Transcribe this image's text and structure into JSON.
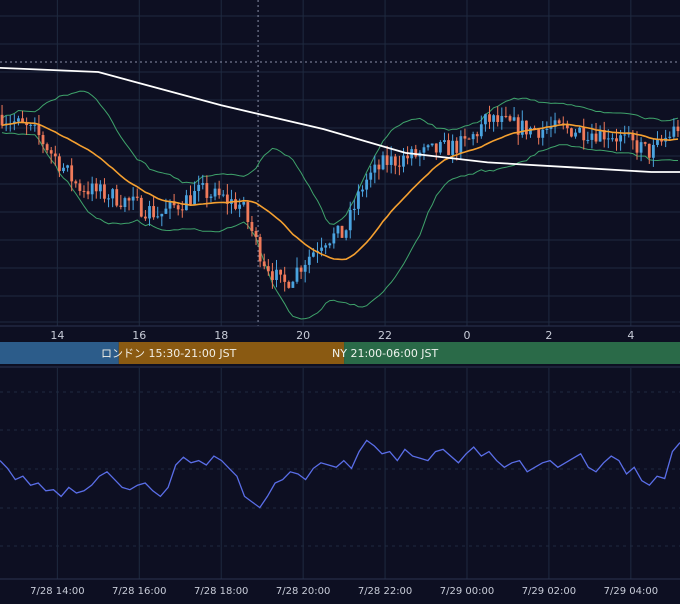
{
  "colors": {
    "background": "#0d0f22",
    "grid": "#1f2a40",
    "candle_up": "#4aa3df",
    "candle_down": "#f07a5a",
    "sma_long": "#ffffff",
    "sma_mid": "#f5a030",
    "bollinger": "#3fa36b",
    "oscillator": "#5a6ee8",
    "session_tokyo": "#2c5c8a",
    "session_london": "#8a5a12",
    "session_ny": "#2a6a48",
    "label_text": "#c8ccd8"
  },
  "x_axis_top": {
    "tick_labels": [
      "14",
      "16",
      "18",
      "20",
      "22",
      "0",
      "2",
      "4"
    ]
  },
  "x_axis_bottom": {
    "tick_labels": [
      "7/28 14:00",
      "7/28 16:00",
      "7/28 18:00",
      "7/28 20:00",
      "7/28 22:00",
      "7/29 00:00",
      "7/29 02:00",
      "7/29 04:00"
    ]
  },
  "sessions": {
    "tokyo_label": "",
    "london_label": "ロンドン 15:30-21:00 JST",
    "ny_label": "NY 21:00-06:00 JST"
  },
  "chart_data": [
    {
      "type": "candlestick",
      "time_axis": "hours JST, 7/28 12:36 → 7/29 05:12",
      "candles_note": "≈166 six-minute candles; overall path below",
      "price_path": [
        {
          "t": "12:36",
          "close": 0.82
        },
        {
          "t": "13:30",
          "close": 0.74
        },
        {
          "t": "14:30",
          "close": 0.52
        },
        {
          "t": "15:30",
          "close": 0.47
        },
        {
          "t": "16:30",
          "close": 0.4
        },
        {
          "t": "17:30",
          "close": 0.5
        },
        {
          "t": "18:00",
          "close": 0.47
        },
        {
          "t": "18:30",
          "close": 0.44
        },
        {
          "t": "19:00",
          "close": 0.22
        },
        {
          "t": "19:30",
          "close": 0.1
        },
        {
          "t": "20:00",
          "close": 0.2
        },
        {
          "t": "20:30",
          "close": 0.3
        },
        {
          "t": "21:00",
          "close": 0.32
        },
        {
          "t": "21:30",
          "close": 0.54
        },
        {
          "t": "22:00",
          "close": 0.62
        },
        {
          "t": "23:00",
          "close": 0.66
        },
        {
          "t": "00:00",
          "close": 0.7
        },
        {
          "t": "00:30",
          "close": 0.8
        },
        {
          "t": "01:30",
          "close": 0.76
        },
        {
          "t": "02:30",
          "close": 0.76
        },
        {
          "t": "03:30",
          "close": 0.74
        },
        {
          "t": "04:30",
          "close": 0.66
        },
        {
          "t": "05:12",
          "close": 0.78
        }
      ],
      "overlays": [
        "long moving average (white)",
        "mid moving average (orange)",
        "Bollinger bands (green)"
      ],
      "grid": true
    },
    {
      "type": "line",
      "series": [
        {
          "values": [
            0.62,
            0.55,
            0.45,
            0.48,
            0.4,
            0.42,
            0.35,
            0.36,
            0.3,
            0.38,
            0.33,
            0.35,
            0.4,
            0.48,
            0.52,
            0.45,
            0.38,
            0.36,
            0.4,
            0.42,
            0.35,
            0.3,
            0.38,
            0.58,
            0.65,
            0.6,
            0.62,
            0.58,
            0.66,
            0.62,
            0.55,
            0.48,
            0.3,
            0.25,
            0.2,
            0.3,
            0.42,
            0.45,
            0.52,
            0.5,
            0.45,
            0.55,
            0.6,
            0.58,
            0.56,
            0.62,
            0.55,
            0.7,
            0.8,
            0.75,
            0.68,
            0.7,
            0.62,
            0.72,
            0.66,
            0.64,
            0.62,
            0.7,
            0.72,
            0.66,
            0.6,
            0.68,
            0.74,
            0.66,
            0.7,
            0.62,
            0.56,
            0.6,
            0.62,
            0.52,
            0.56,
            0.6,
            0.62,
            0.56,
            0.6,
            0.64,
            0.68,
            0.56,
            0.52,
            0.6,
            0.66,
            0.62,
            0.5,
            0.56,
            0.44,
            0.4,
            0.48,
            0.46,
            0.7,
            0.78
          ]
        }
      ],
      "grid": true
    }
  ]
}
